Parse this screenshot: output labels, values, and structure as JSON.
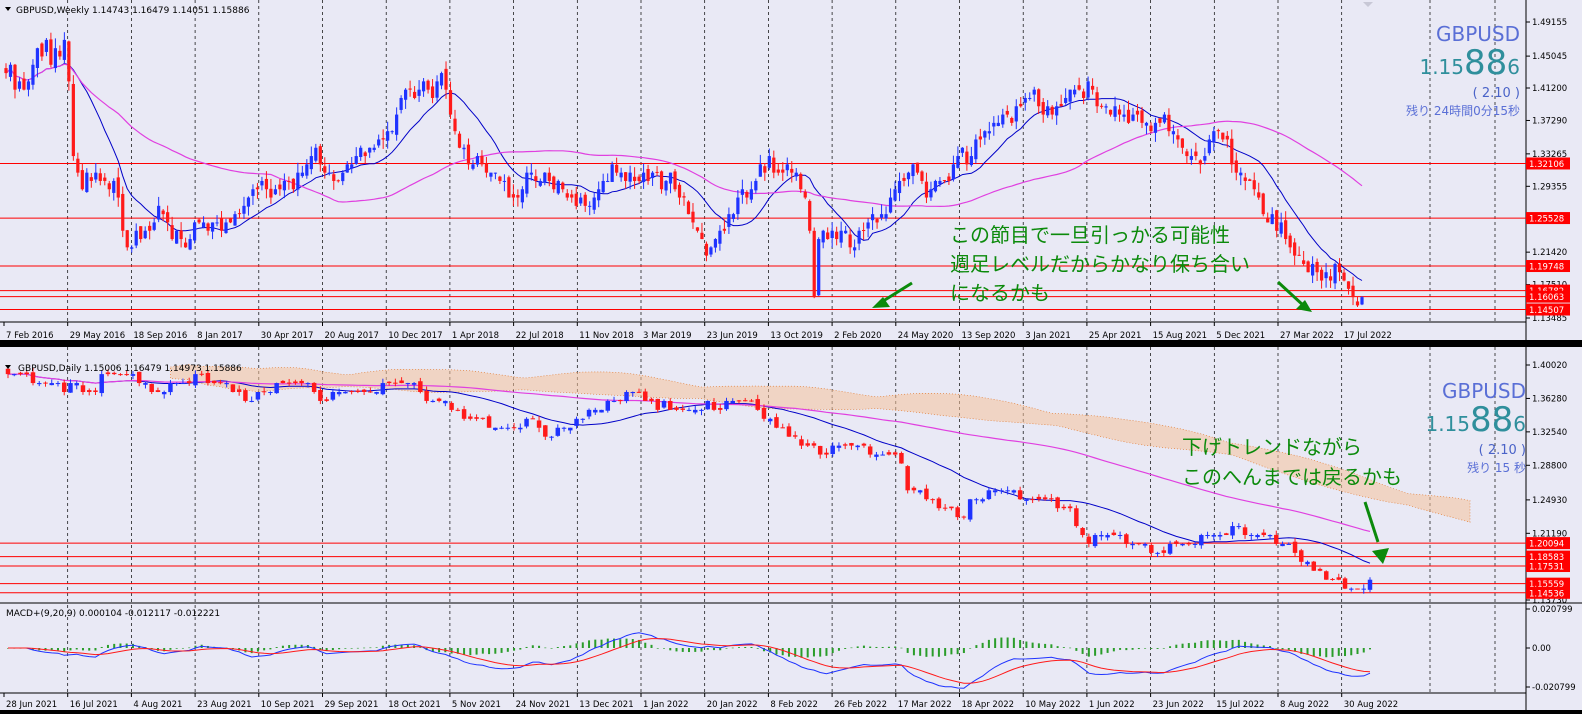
{
  "weekly": {
    "header": "GBPUSD,Weekly  1.14743 1.16479 1.14051 1.15886",
    "symbol_widget": {
      "symbol": "GBPUSD",
      "price_prefix": "1.15",
      "price_big": "88",
      "price_suffix": "6",
      "change": "( 2.10 )",
      "remaining": "残り 24時間0分15秒"
    },
    "annotation": [
      "この節目で一旦引っかる可能性",
      "週足レベルだからかなり保ち合い",
      "になるかも"
    ],
    "colors": {
      "bull": "#1f33ff",
      "bear": "#ff1a1a",
      "ma_fast": "#0000c8",
      "ma_slow": "#e040e0",
      "level": "#ff0000",
      "annotation": "#0b8a0b",
      "widget": "#4a63c8"
    },
    "chart_data": {
      "type": "candlestick",
      "title": "GBPUSD,Weekly",
      "ohlc_last": {
        "open": 1.14743,
        "high": 1.16479,
        "low": 1.14051,
        "close": 1.15886
      },
      "x_tick_labels": [
        "7 Feb 2016",
        "29 May 2016",
        "18 Sep 2016",
        "8 Jan 2017",
        "30 Apr 2017",
        "20 Aug 2017",
        "10 Dec 2017",
        "1 Apr 2018",
        "22 Jul 2018",
        "11 Nov 2018",
        "3 Mar 2019",
        "23 Jun 2019",
        "13 Oct 2019",
        "2 Feb 2020",
        "24 May 2020",
        "13 Sep 2020",
        "3 Jan 2021",
        "25 Apr 2021",
        "15 Aug 2021",
        "5 Dec 2021",
        "27 Mar 2022",
        "17 Jul 2022"
      ],
      "y_tick_labels": [
        "1.49155",
        "1.45045",
        "1.41200",
        "1.37290",
        "1.33265",
        "1.29355",
        "1.25330",
        "1.21420",
        "1.17510",
        "1.13485"
      ],
      "ylim": [
        1.13485,
        1.49155
      ],
      "horizontal_levels": [
        "1.32106",
        "1.25528",
        "1.19748",
        "1.16782",
        "1.16063",
        "1.14507"
      ],
      "close_series": [
        1.43,
        1.44,
        1.41,
        1.42,
        1.41,
        1.42,
        1.44,
        1.46,
        1.45,
        1.47,
        1.44,
        1.46,
        1.45,
        1.47,
        1.42,
        1.33,
        1.31,
        1.29,
        1.31,
        1.3,
        1.31,
        1.3,
        1.3,
        1.29,
        1.3,
        1.28,
        1.24,
        1.22,
        1.22,
        1.24,
        1.23,
        1.24,
        1.24,
        1.25,
        1.27,
        1.26,
        1.25,
        1.23,
        1.24,
        1.23,
        1.22,
        1.23,
        1.25,
        1.25,
        1.25,
        1.24,
        1.25,
        1.25,
        1.24,
        1.25,
        1.25,
        1.26,
        1.26,
        1.27,
        1.28,
        1.29,
        1.29,
        1.3,
        1.29,
        1.28,
        1.29,
        1.29,
        1.3,
        1.3,
        1.29,
        1.31,
        1.31,
        1.32,
        1.33,
        1.34,
        1.32,
        1.31,
        1.31,
        1.3,
        1.3,
        1.31,
        1.32,
        1.32,
        1.33,
        1.34,
        1.33,
        1.34,
        1.34,
        1.35,
        1.35,
        1.36,
        1.36,
        1.38,
        1.4,
        1.41,
        1.41,
        1.4,
        1.41,
        1.42,
        1.41,
        1.4,
        1.42,
        1.43,
        1.41,
        1.38,
        1.36,
        1.34,
        1.34,
        1.32,
        1.32,
        1.33,
        1.32,
        1.31,
        1.31,
        1.31,
        1.3,
        1.3,
        1.28,
        1.28,
        1.28,
        1.29,
        1.31,
        1.31,
        1.3,
        1.3,
        1.31,
        1.3,
        1.29,
        1.3,
        1.29,
        1.28,
        1.28,
        1.27,
        1.28,
        1.27,
        1.27,
        1.28,
        1.29,
        1.3,
        1.3,
        1.32,
        1.31,
        1.31,
        1.3,
        1.31,
        1.3,
        1.3,
        1.31,
        1.3,
        1.31,
        1.31,
        1.29,
        1.3,
        1.31,
        1.29,
        1.28,
        1.28,
        1.26,
        1.25,
        1.24,
        1.23,
        1.21,
        1.22,
        1.23,
        1.24,
        1.24,
        1.26,
        1.26,
        1.28,
        1.29,
        1.28,
        1.29,
        1.3,
        1.32,
        1.31,
        1.33,
        1.31,
        1.31,
        1.31,
        1.32,
        1.31,
        1.31,
        1.29,
        1.28,
        1.24,
        1.16,
        1.23,
        1.24,
        1.23,
        1.24,
        1.23,
        1.24,
        1.24,
        1.22,
        1.22,
        1.24,
        1.24,
        1.25,
        1.26,
        1.25,
        1.26,
        1.26,
        1.28,
        1.29,
        1.3,
        1.3,
        1.31,
        1.32,
        1.31,
        1.3,
        1.28,
        1.29,
        1.3,
        1.3,
        1.3,
        1.3,
        1.32,
        1.33,
        1.34,
        1.32,
        1.33,
        1.35,
        1.35,
        1.36,
        1.36,
        1.37,
        1.37,
        1.38,
        1.38,
        1.37,
        1.39,
        1.39,
        1.4,
        1.4,
        1.41,
        1.39,
        1.38,
        1.39,
        1.38,
        1.39,
        1.39,
        1.4,
        1.41,
        1.41,
        1.41,
        1.4,
        1.42,
        1.41,
        1.39,
        1.39,
        1.39,
        1.38,
        1.39,
        1.38,
        1.38,
        1.37,
        1.38,
        1.38,
        1.37,
        1.37,
        1.36,
        1.37,
        1.37,
        1.38,
        1.36,
        1.36,
        1.35,
        1.34,
        1.33,
        1.33,
        1.33,
        1.32,
        1.33,
        1.35,
        1.36,
        1.36,
        1.35,
        1.35,
        1.32,
        1.31,
        1.31,
        1.3,
        1.3,
        1.29,
        1.28,
        1.26,
        1.25,
        1.26,
        1.24,
        1.25,
        1.23,
        1.22,
        1.21,
        1.21,
        1.2,
        1.19,
        1.2,
        1.19,
        1.18,
        1.19,
        1.18,
        1.2,
        1.19,
        1.18,
        1.17,
        1.16,
        1.15,
        1.16
      ]
    }
  },
  "daily": {
    "header": "GBPUSD,Daily  1.15006 1.16479 1.14973 1.15886",
    "symbol_widget": {
      "symbol": "GBPUSD",
      "price_prefix": "1.15",
      "price_big": "88",
      "price_suffix": "6",
      "change": "( 2.10 )",
      "remaining": "残り 15 秒"
    },
    "annotation": [
      "下げトレンドながら",
      "このへんまでは戻るかも"
    ],
    "chart_data": {
      "type": "candlestick",
      "title": "GBPUSD,Daily",
      "ohlc_last": {
        "open": 1.15006,
        "high": 1.16479,
        "low": 1.14973,
        "close": 1.15886
      },
      "x_tick_labels": [
        "28 Jun 2021",
        "16 Jul 2021",
        "4 Aug 2021",
        "23 Aug 2021",
        "10 Sep 2021",
        "29 Sep 2021",
        "18 Oct 2021",
        "5 Nov 2021",
        "24 Nov 2021",
        "13 Dec 2021",
        "1 Jan 2022",
        "20 Jan 2022",
        "8 Feb 2022",
        "26 Feb 2022",
        "17 Mar 2022",
        "18 Apr 2022",
        "10 May 2022",
        "1 Jun 2022",
        "23 Jun 2022",
        "15 Jul 2022",
        "8 Aug 2022",
        "30 Aug 2022"
      ],
      "y_tick_labels": [
        "1.40020",
        "1.36280",
        "1.32540",
        "1.28800",
        "1.24930",
        "1.21190",
        "1.13730"
      ],
      "ylim": [
        1.1373,
        1.4002
      ],
      "horizontal_levels": [
        "1.20094",
        "1.18583",
        "1.17531",
        "1.15559",
        "1.14536"
      ],
      "close_series": [
        1.39,
        1.39,
        1.39,
        1.39,
        1.38,
        1.38,
        1.38,
        1.38,
        1.38,
        1.37,
        1.38,
        1.38,
        1.37,
        1.37,
        1.37,
        1.39,
        1.39,
        1.39,
        1.39,
        1.39,
        1.39,
        1.38,
        1.38,
        1.37,
        1.37,
        1.37,
        1.38,
        1.38,
        1.38,
        1.38,
        1.39,
        1.39,
        1.38,
        1.38,
        1.38,
        1.38,
        1.37,
        1.37,
        1.36,
        1.36,
        1.37,
        1.37,
        1.37,
        1.38,
        1.38,
        1.38,
        1.38,
        1.38,
        1.38,
        1.37,
        1.36,
        1.36,
        1.37,
        1.37,
        1.37,
        1.37,
        1.37,
        1.37,
        1.37,
        1.37,
        1.38,
        1.38,
        1.38,
        1.38,
        1.38,
        1.38,
        1.37,
        1.36,
        1.36,
        1.36,
        1.36,
        1.35,
        1.35,
        1.34,
        1.34,
        1.34,
        1.34,
        1.33,
        1.33,
        1.33,
        1.33,
        1.33,
        1.33,
        1.34,
        1.34,
        1.33,
        1.32,
        1.32,
        1.33,
        1.33,
        1.33,
        1.34,
        1.34,
        1.35,
        1.35,
        1.35,
        1.36,
        1.36,
        1.36,
        1.37,
        1.37,
        1.37,
        1.36,
        1.36,
        1.35,
        1.36,
        1.35,
        1.35,
        1.35,
        1.35,
        1.35,
        1.35,
        1.36,
        1.35,
        1.35,
        1.36,
        1.36,
        1.36,
        1.36,
        1.36,
        1.35,
        1.34,
        1.34,
        1.33,
        1.33,
        1.32,
        1.32,
        1.31,
        1.31,
        1.31,
        1.3,
        1.3,
        1.31,
        1.31,
        1.31,
        1.31,
        1.31,
        1.31,
        1.3,
        1.3,
        1.3,
        1.3,
        1.3,
        1.29,
        1.26,
        1.26,
        1.26,
        1.25,
        1.25,
        1.24,
        1.24,
        1.24,
        1.23,
        1.23,
        1.25,
        1.25,
        1.25,
        1.26,
        1.26,
        1.26,
        1.26,
        1.26,
        1.25,
        1.25,
        1.25,
        1.25,
        1.25,
        1.25,
        1.24,
        1.24,
        1.24,
        1.22,
        1.21,
        1.2,
        1.21,
        1.21,
        1.21,
        1.21,
        1.21,
        1.2,
        1.2,
        1.2,
        1.2,
        1.19,
        1.19,
        1.19,
        1.2,
        1.2,
        1.2,
        1.2,
        1.2,
        1.21,
        1.21,
        1.21,
        1.21,
        1.21,
        1.22,
        1.22,
        1.21,
        1.21,
        1.21,
        1.21,
        1.21,
        1.2,
        1.2,
        1.2,
        1.19,
        1.18,
        1.18,
        1.17,
        1.17,
        1.16,
        1.16,
        1.16,
        1.15,
        1.15,
        1.15,
        1.15,
        1.16
      ]
    },
    "macd": {
      "header": "MACD+(9,20,9) 0.000104 -0.012117 -0.012221",
      "y_tick_labels": [
        "0.020799",
        "0.00",
        "-0.020799"
      ],
      "ylim": [
        -0.020799,
        0.020799
      ]
    }
  }
}
